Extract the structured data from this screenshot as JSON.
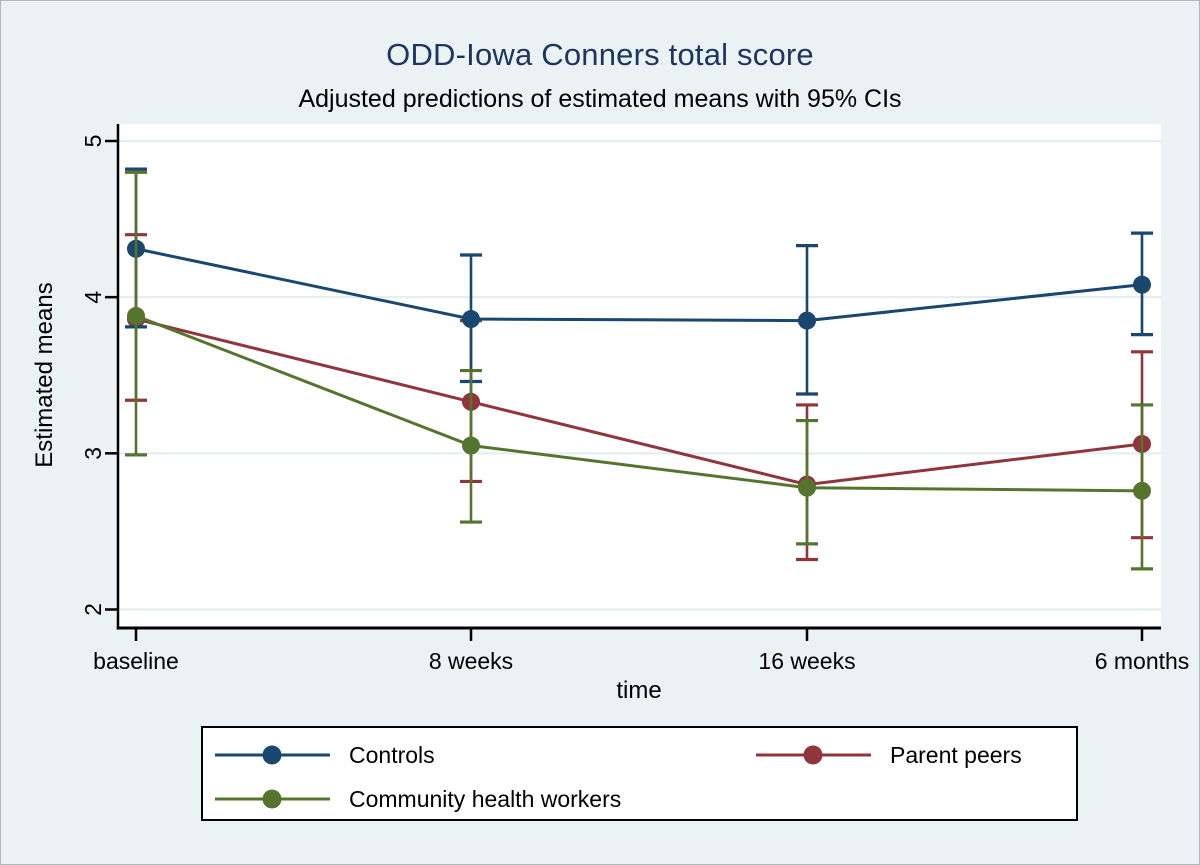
{
  "chart_data": {
    "type": "line",
    "title": "ODD-Iowa Conners total score",
    "subtitle": "Adjusted predictions of estimated means with 95% CIs",
    "xlabel": "time",
    "ylabel": "Estimated means",
    "categories": [
      "baseline",
      "8 weeks",
      "16 weeks",
      "6 months"
    ],
    "y_ticks": [
      2,
      3,
      4,
      5
    ],
    "ylim": [
      1.88,
      5.11
    ],
    "grid": true,
    "legend_position": "bottom",
    "error_bars": "95% CI",
    "series": [
      {
        "name": "Controls",
        "color": "#1A476F",
        "means": [
          4.31,
          3.86,
          3.85,
          4.08
        ],
        "ci_low": [
          3.81,
          3.46,
          3.38,
          3.76
        ],
        "ci_high": [
          4.82,
          4.27,
          4.33,
          4.41
        ]
      },
      {
        "name": "Parent peers",
        "color": "#90353B",
        "means": [
          3.86,
          3.33,
          2.8,
          3.06
        ],
        "ci_low": [
          3.34,
          2.82,
          2.32,
          2.46
        ],
        "ci_high": [
          4.4,
          3.85,
          3.31,
          3.65
        ]
      },
      {
        "name": "Community health workers",
        "color": "#55752F",
        "means": [
          3.88,
          3.05,
          2.78,
          2.76
        ],
        "ci_low": [
          2.99,
          2.56,
          2.42,
          2.26
        ],
        "ci_high": [
          4.8,
          3.53,
          3.21,
          3.31
        ]
      }
    ],
    "colors": {
      "background": "#eaf2f3",
      "plot_background": "#ffffff",
      "gridline": "#e2edf0",
      "axis": "#000000",
      "title": "#1e3560"
    }
  }
}
